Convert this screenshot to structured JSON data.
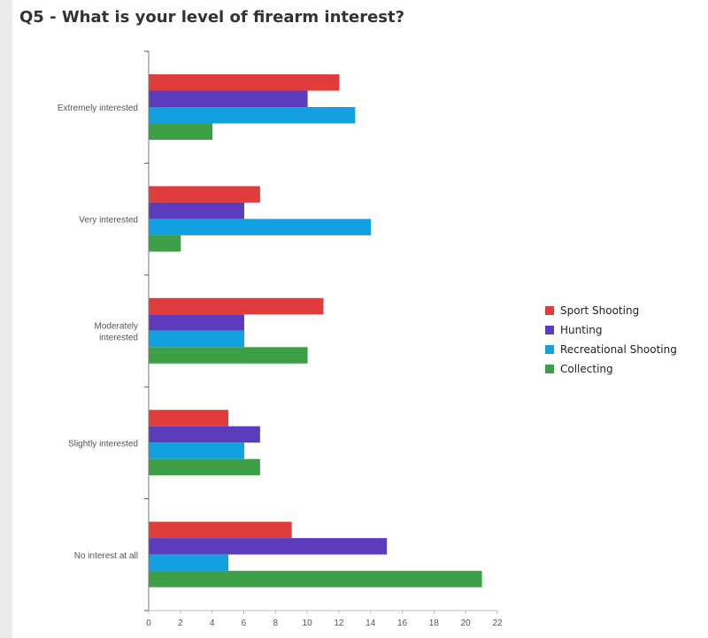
{
  "chart_data": {
    "type": "bar",
    "orientation": "horizontal",
    "title": "Q5 - What is your level of firearm interest?",
    "categories": [
      [
        "Extremely interested"
      ],
      [
        "Very interested"
      ],
      [
        "Moderately",
        "interested"
      ],
      [
        "Slightly interested"
      ],
      [
        "No interest at all"
      ]
    ],
    "series": [
      {
        "name": "Sport Shooting",
        "color": "#e03c3c",
        "values": [
          12,
          7,
          11,
          5,
          9
        ]
      },
      {
        "name": "Hunting",
        "color": "#5b3cbd",
        "values": [
          10,
          6,
          6,
          7,
          15
        ]
      },
      {
        "name": "Recreational Shooting",
        "color": "#12a0e0",
        "values": [
          13,
          14,
          6,
          6,
          5
        ]
      },
      {
        "name": "Collecting",
        "color": "#3da046",
        "values": [
          4,
          2,
          10,
          7,
          21
        ]
      }
    ],
    "xlim": [
      0,
      22
    ],
    "xticks": [
      0,
      2,
      4,
      6,
      8,
      10,
      12,
      14,
      16,
      18,
      20,
      22
    ],
    "grid": false,
    "legend_position": "right"
  }
}
